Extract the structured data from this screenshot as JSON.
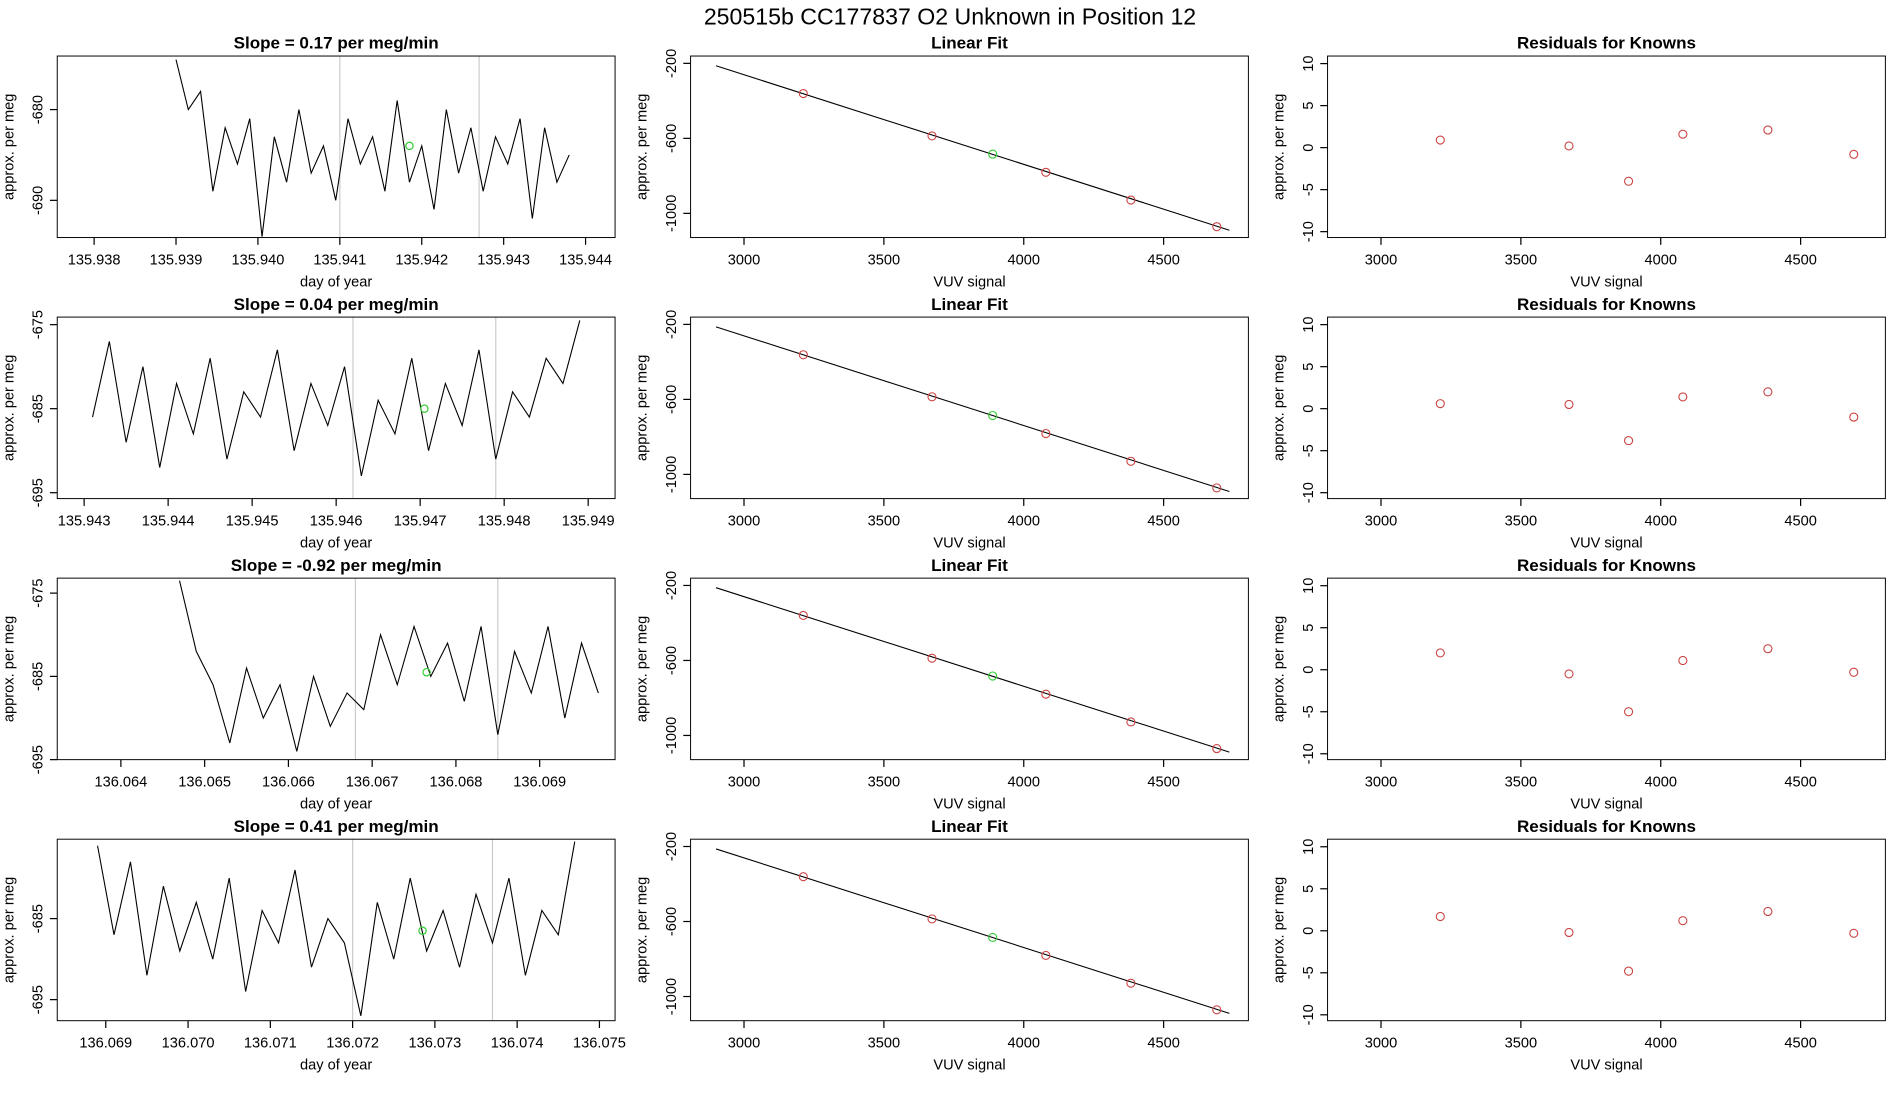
{
  "title": "250515b      CC177837    O2 Unknown in Position  12",
  "chart_data": [
    {
      "type": "line",
      "title": "Slope =  0.17  per meg/min",
      "xlabel": "day of year",
      "ylabel": "approx. per meg",
      "color": "#000000",
      "x": [
        135.939,
        135.93915,
        135.9393,
        135.93945,
        135.9396,
        135.93975,
        135.9399,
        135.94005,
        135.9402,
        135.94035,
        135.9405,
        135.94065,
        135.9408,
        135.94095,
        135.9411,
        135.94125,
        135.9414,
        135.94155,
        135.9417,
        135.94185,
        135.942,
        135.94215,
        135.9423,
        135.94245,
        135.9426,
        135.94275,
        135.9429,
        135.94305,
        135.9432,
        135.94335,
        135.9435,
        135.94365,
        135.9438
      ],
      "values": [
        -674.5,
        -680,
        -678,
        -689,
        -682,
        -686,
        -681,
        -694,
        -683,
        -688,
        -680,
        -687,
        -684,
        -690,
        -681,
        -686,
        -683,
        -689,
        -679,
        -688,
        -684,
        -691,
        -680,
        -687,
        -682,
        -689,
        -683,
        -686,
        -681,
        -692,
        -682,
        -688,
        -685
      ],
      "vlines": [
        135.941,
        135.9427
      ],
      "vline_color": "#cccccc",
      "highlight": {
        "x": 135.94185,
        "y": -684,
        "color": "#33cc33"
      },
      "xlim": [
        135.93755,
        135.94436
      ],
      "ylim": [
        -694.1,
        -674.1
      ],
      "xticks": [
        135.938,
        135.939,
        {
          "value": 135.94,
          "label": "135.940"
        },
        135.941,
        135.942,
        135.943,
        135.944
      ],
      "yticks": [
        -680,
        -690
      ]
    },
    {
      "type": "scatter",
      "title": "Linear Fit",
      "xlabel": "VUV signal",
      "ylabel": "approx. per meg",
      "series": [
        {
          "color": "#cc4444",
          "x": [
            3212,
            3672,
            4079,
            4383,
            4690
          ],
          "values": [
            -361,
            -587,
            -781,
            -929,
            -1071
          ]
        },
        {
          "color": "#33cc33",
          "x": [
            3889
          ],
          "values": [
            -684
          ]
        }
      ],
      "fit": {
        "color": "#000000",
        "x": [
          2900,
          4735
        ],
        "values": [
          -213,
          -1090
        ]
      },
      "xlim": [
        2809,
        4803
      ],
      "ylim": [
        -1129,
        -161
      ],
      "xticks": [
        3000,
        3500,
        4000,
        4500
      ],
      "yticks": [
        -200,
        -600,
        -1000
      ]
    },
    {
      "type": "scatter",
      "title": "Residuals for Knowns",
      "xlabel": "VUV signal",
      "ylabel": "approx. per meg",
      "series": [
        {
          "color": "#cc4444",
          "x": [
            3212,
            3672,
            3885,
            4079,
            4383,
            4690
          ],
          "values": [
            0.9,
            0.2,
            -4.0,
            1.6,
            2.1,
            -0.8
          ]
        }
      ],
      "xlim": [
        2809,
        4803
      ],
      "ylim": [
        -10.7,
        10.9
      ],
      "xticks": [
        3000,
        3500,
        4000,
        4500
      ],
      "yticks": [
        10,
        5,
        0,
        -5,
        -10
      ]
    },
    {
      "type": "line",
      "title": "Slope =  0.04  per meg/min",
      "xlabel": "day of year",
      "ylabel": "approx. per meg",
      "color": "#000000",
      "x": [
        135.9431,
        135.9433,
        135.9435,
        135.9437,
        135.9439,
        135.9441,
        135.9443,
        135.9445,
        135.9447,
        135.9449,
        135.9451,
        135.9453,
        135.9455,
        135.9457,
        135.9459,
        135.9461,
        135.9463,
        135.9465,
        135.9467,
        135.9469,
        135.9471,
        135.9473,
        135.9475,
        135.9477,
        135.9479,
        135.9481,
        135.9483,
        135.9485,
        135.9487,
        135.9489
      ],
      "values": [
        -686,
        -677,
        -689,
        -680,
        -692,
        -682,
        -688,
        -679,
        -691,
        -683,
        -686,
        -678,
        -690,
        -682,
        -687,
        -680,
        -693,
        -684,
        -688,
        -679,
        -690,
        -682,
        -687,
        -678,
        -691,
        -683,
        -686,
        -679,
        -682,
        -674.5
      ],
      "vlines": [
        135.9462,
        135.9479
      ],
      "vline_color": "#cccccc",
      "highlight": {
        "x": 135.94705,
        "y": -685,
        "color": "#33cc33"
      },
      "xlim": [
        135.94268,
        135.94932
      ],
      "ylim": [
        -695.7,
        -674.1
      ],
      "xticks": [
        135.943,
        135.944,
        135.945,
        135.946,
        135.947,
        135.948,
        135.949
      ],
      "yticks": [
        -675,
        -685,
        -695
      ]
    },
    {
      "type": "scatter",
      "title": "Linear Fit",
      "xlabel": "VUV signal",
      "ylabel": "approx. per meg",
      "series": [
        {
          "color": "#cc4444",
          "x": [
            3212,
            3672,
            4079,
            4383,
            4690
          ],
          "values": [
            -362,
            -586,
            -782,
            -930,
            -1072
          ]
        },
        {
          "color": "#33cc33",
          "x": [
            3889
          ],
          "values": [
            -686
          ]
        }
      ],
      "fit": {
        "color": "#000000",
        "x": [
          2900,
          4735
        ],
        "values": [
          -213,
          -1091
        ]
      },
      "xlim": [
        2809,
        4803
      ],
      "ylim": [
        -1129,
        -161
      ],
      "xticks": [
        3000,
        3500,
        4000,
        4500
      ],
      "yticks": [
        -200,
        -600,
        -1000
      ]
    },
    {
      "type": "scatter",
      "title": "Residuals for Knowns",
      "xlabel": "VUV signal",
      "ylabel": "approx. per meg",
      "series": [
        {
          "color": "#cc4444",
          "x": [
            3212,
            3672,
            3885,
            4079,
            4383,
            4690
          ],
          "values": [
            0.6,
            0.5,
            -3.8,
            1.4,
            2.0,
            -1.0
          ]
        }
      ],
      "xlim": [
        2809,
        4803
      ],
      "ylim": [
        -10.7,
        10.9
      ],
      "xticks": [
        3000,
        3500,
        4000,
        4500
      ],
      "yticks": [
        10,
        5,
        0,
        -5,
        -10
      ]
    },
    {
      "type": "line",
      "title": "Slope =  -0.92  per meg/min",
      "xlabel": "day of year",
      "ylabel": "approx. per meg",
      "color": "#000000",
      "x": [
        136.0647,
        136.0649,
        136.0651,
        136.0653,
        136.0655,
        136.0657,
        136.0659,
        136.0661,
        136.0663,
        136.0665,
        136.0667,
        136.0669,
        136.0671,
        136.0673,
        136.0675,
        136.0677,
        136.0679,
        136.0681,
        136.0683,
        136.0685,
        136.0687,
        136.0689,
        136.0691,
        136.0693,
        136.0695,
        136.0697
      ],
      "values": [
        -673.5,
        -682,
        -686,
        -693,
        -684,
        -690,
        -686,
        -694,
        -685,
        -691,
        -687,
        -689,
        -680,
        -686,
        -679,
        -685,
        -681,
        -688,
        -679,
        -692,
        -682,
        -687,
        -679,
        -690,
        -681,
        -687
      ],
      "vlines": [
        136.0668,
        136.0685
      ],
      "vline_color": "#cccccc",
      "highlight": {
        "x": 136.06765,
        "y": -684.5,
        "color": "#33cc33"
      },
      "xlim": [
        136.06324,
        136.0699
      ],
      "ylim": [
        -695,
        -673.2
      ],
      "xticks": [
        136.064,
        136.065,
        136.066,
        136.067,
        136.068,
        136.069
      ],
      "yticks": [
        -675,
        -685,
        -695
      ]
    },
    {
      "type": "scatter",
      "title": "Linear Fit",
      "xlabel": "VUV signal",
      "ylabel": "approx. per meg",
      "series": [
        {
          "color": "#cc4444",
          "x": [
            3212,
            3672,
            4079,
            4383,
            4690
          ],
          "values": [
            -360,
            -588,
            -780,
            -928,
            -1070
          ]
        },
        {
          "color": "#33cc33",
          "x": [
            3889
          ],
          "values": [
            -683
          ]
        }
      ],
      "fit": {
        "color": "#000000",
        "x": [
          2900,
          4735
        ],
        "values": [
          -212,
          -1089
        ]
      },
      "xlim": [
        2809,
        4803
      ],
      "ylim": [
        -1129,
        -161
      ],
      "xticks": [
        3000,
        3500,
        4000,
        4500
      ],
      "yticks": [
        -200,
        -600,
        -1000
      ]
    },
    {
      "type": "scatter",
      "title": "Residuals for Knowns",
      "xlabel": "VUV signal",
      "ylabel": "approx. per meg",
      "series": [
        {
          "color": "#cc4444",
          "x": [
            3212,
            3672,
            3885,
            4079,
            4383,
            4690
          ],
          "values": [
            2.0,
            -0.5,
            -5.0,
            1.1,
            2.5,
            -0.3
          ]
        }
      ],
      "xlim": [
        2809,
        4803
      ],
      "ylim": [
        -10.7,
        10.9
      ],
      "xticks": [
        3000,
        3500,
        4000,
        4500
      ],
      "yticks": [
        10,
        5,
        0,
        -5,
        -10
      ]
    },
    {
      "type": "line",
      "title": "Slope =  0.41  per meg/min",
      "xlabel": "day of year",
      "ylabel": "approx. per meg",
      "color": "#000000",
      "x": [
        136.0689,
        136.0691,
        136.0693,
        136.0695,
        136.0697,
        136.0699,
        136.0701,
        136.0703,
        136.0705,
        136.0707,
        136.0709,
        136.0711,
        136.0713,
        136.0715,
        136.0717,
        136.0719,
        136.0721,
        136.0723,
        136.0725,
        136.0727,
        136.0729,
        136.0731,
        136.0733,
        136.0735,
        136.0737,
        136.0739,
        136.0741,
        136.0743,
        136.0745,
        136.0747
      ],
      "values": [
        -676,
        -687,
        -678,
        -692,
        -681,
        -689,
        -683,
        -690,
        -680,
        -694,
        -684,
        -688,
        -679,
        -691,
        -685,
        -688,
        -697,
        -683,
        -690,
        -680,
        -689,
        -684,
        -691,
        -682,
        -688,
        -680,
        -692,
        -684,
        -687,
        -675.5
      ],
      "vlines": [
        136.072,
        136.0737
      ],
      "vline_color": "#cccccc",
      "highlight": {
        "x": 136.07285,
        "y": -686.5,
        "color": "#33cc33"
      },
      "xlim": [
        136.06841,
        136.07519
      ],
      "ylim": [
        -697.6,
        -675.2
      ],
      "xticks": [
        136.069,
        {
          "value": 136.07,
          "label": "136.070"
        },
        136.071,
        136.072,
        136.073,
        136.074,
        136.075
      ],
      "yticks": [
        -685,
        -695
      ]
    },
    {
      "type": "scatter",
      "title": "Linear Fit",
      "xlabel": "VUV signal",
      "ylabel": "approx. per meg",
      "series": [
        {
          "color": "#cc4444",
          "x": [
            3212,
            3672,
            4079,
            4383,
            4690
          ],
          "values": [
            -361,
            -586,
            -781,
            -929,
            -1071
          ]
        },
        {
          "color": "#33cc33",
          "x": [
            3889
          ],
          "values": [
            -685
          ]
        }
      ],
      "fit": {
        "color": "#000000",
        "x": [
          2900,
          4735
        ],
        "values": [
          -213,
          -1090
        ]
      },
      "xlim": [
        2809,
        4803
      ],
      "ylim": [
        -1129,
        -161
      ],
      "xticks": [
        3000,
        3500,
        4000,
        4500
      ],
      "yticks": [
        -200,
        -600,
        -1000
      ]
    },
    {
      "type": "scatter",
      "title": "Residuals for Knowns",
      "xlabel": "VUV signal",
      "ylabel": "approx. per meg",
      "series": [
        {
          "color": "#cc4444",
          "x": [
            3212,
            3672,
            3885,
            4079,
            4383,
            4690
          ],
          "values": [
            1.7,
            -0.2,
            -4.8,
            1.2,
            2.3,
            -0.3
          ]
        }
      ],
      "xlim": [
        2809,
        4803
      ],
      "ylim": [
        -10.7,
        10.9
      ],
      "xticks": [
        3000,
        3500,
        4000,
        4500
      ],
      "yticks": [
        10,
        5,
        0,
        -5,
        -10
      ]
    }
  ]
}
